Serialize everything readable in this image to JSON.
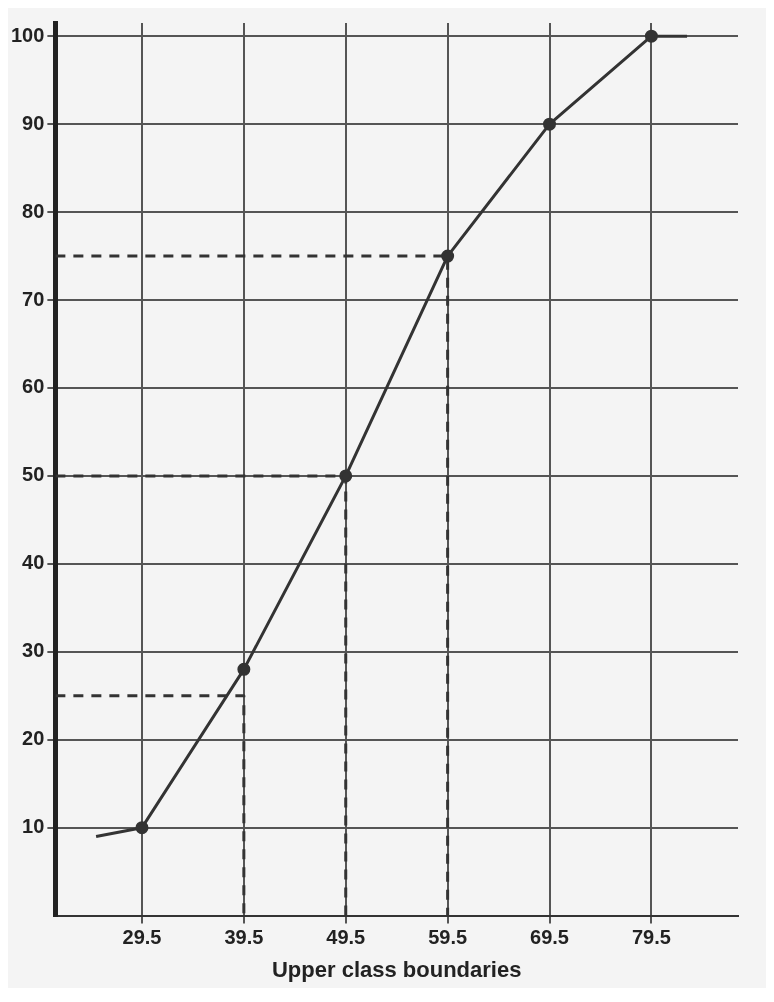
{
  "chart_data": {
    "type": "line",
    "xlabel": "Upper class boundaries",
    "xlim": [
      21,
      88
    ],
    "ylim": [
      0,
      101.5
    ],
    "xticks": [
      29.5,
      39.5,
      49.5,
      59.5,
      69.5,
      79.5
    ],
    "yticks": [
      10,
      20,
      30,
      40,
      50,
      60,
      70,
      80,
      90,
      100
    ],
    "grid": true,
    "legend": false,
    "series": [
      {
        "color": "#333333",
        "marker": "circle",
        "line_style": "solid",
        "x": [
          29.5,
          39.5,
          49.5,
          59.5,
          69.5,
          79.5
        ],
        "values": [
          10,
          28,
          50,
          75,
          90,
          100
        ]
      },
      {
        "color": "#333333",
        "marker": "none",
        "line_style": "solid",
        "x": [
          25,
          29.5
        ],
        "values": [
          9,
          10
        ]
      },
      {
        "color": "#333333",
        "marker": "none",
        "line_style": "solid",
        "x": [
          79.5,
          83
        ],
        "values": [
          100,
          100
        ]
      },
      {
        "color": "#333333",
        "marker": "none",
        "line_style": "dashed",
        "x": [
          21,
          39.5,
          39.5
        ],
        "values": [
          25,
          25,
          0
        ]
      },
      {
        "color": "#333333",
        "marker": "none",
        "line_style": "dashed",
        "x": [
          21,
          49.5,
          49.5
        ],
        "values": [
          50,
          50,
          0
        ]
      },
      {
        "color": "#333333",
        "marker": "none",
        "line_style": "dashed",
        "x": [
          21,
          59.5,
          59.5
        ],
        "values": [
          75,
          75,
          0
        ]
      }
    ]
  }
}
